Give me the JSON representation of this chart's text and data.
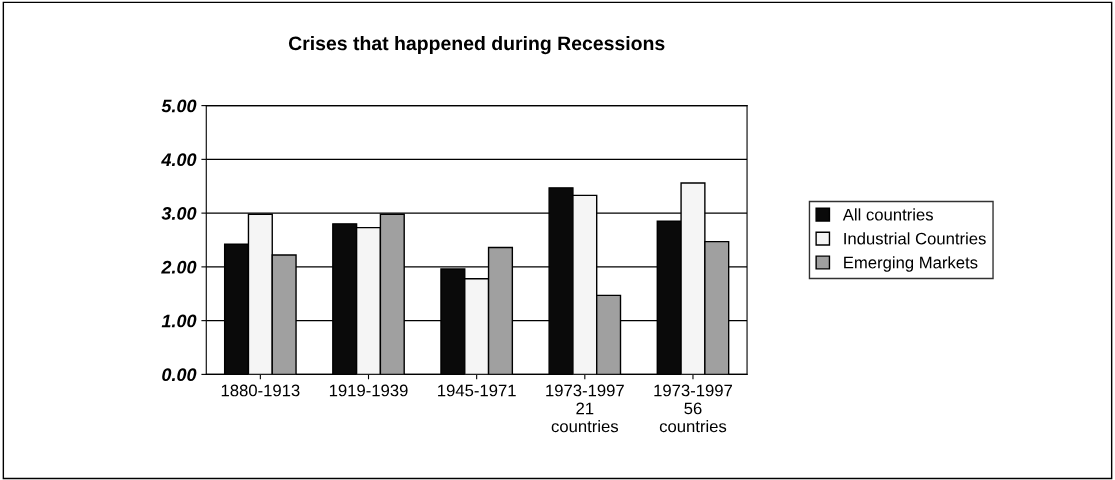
{
  "chart_data": {
    "type": "bar",
    "title": "Crises that happened during Recessions",
    "categories": [
      "1880-1913",
      "1919-1939",
      "1945-1971",
      "1973-1997\n21\ncountries",
      "1973-1997\n56\ncountries"
    ],
    "series": [
      {
        "name": "All countries",
        "color": "#0a0a0a",
        "values": [
          2.42,
          2.8,
          1.96,
          3.47,
          2.85
        ]
      },
      {
        "name": "Industrial Countries",
        "color": "#f5f5f5",
        "values": [
          2.98,
          2.73,
          1.78,
          3.33,
          3.56
        ]
      },
      {
        "name": "Emerging Markets",
        "color": "#a0a0a0",
        "values": [
          2.22,
          2.98,
          2.36,
          1.47,
          2.47
        ]
      }
    ],
    "ylim": [
      0,
      5
    ],
    "yticks": [
      {
        "value": 0,
        "label": "0.00"
      },
      {
        "value": 1,
        "label": "1.00"
      },
      {
        "value": 2,
        "label": "2.00"
      },
      {
        "value": 3,
        "label": "3.00"
      },
      {
        "value": 4,
        "label": "4.00"
      },
      {
        "value": 5,
        "label": "5.00"
      }
    ],
    "grid": "y",
    "legend": "right"
  }
}
